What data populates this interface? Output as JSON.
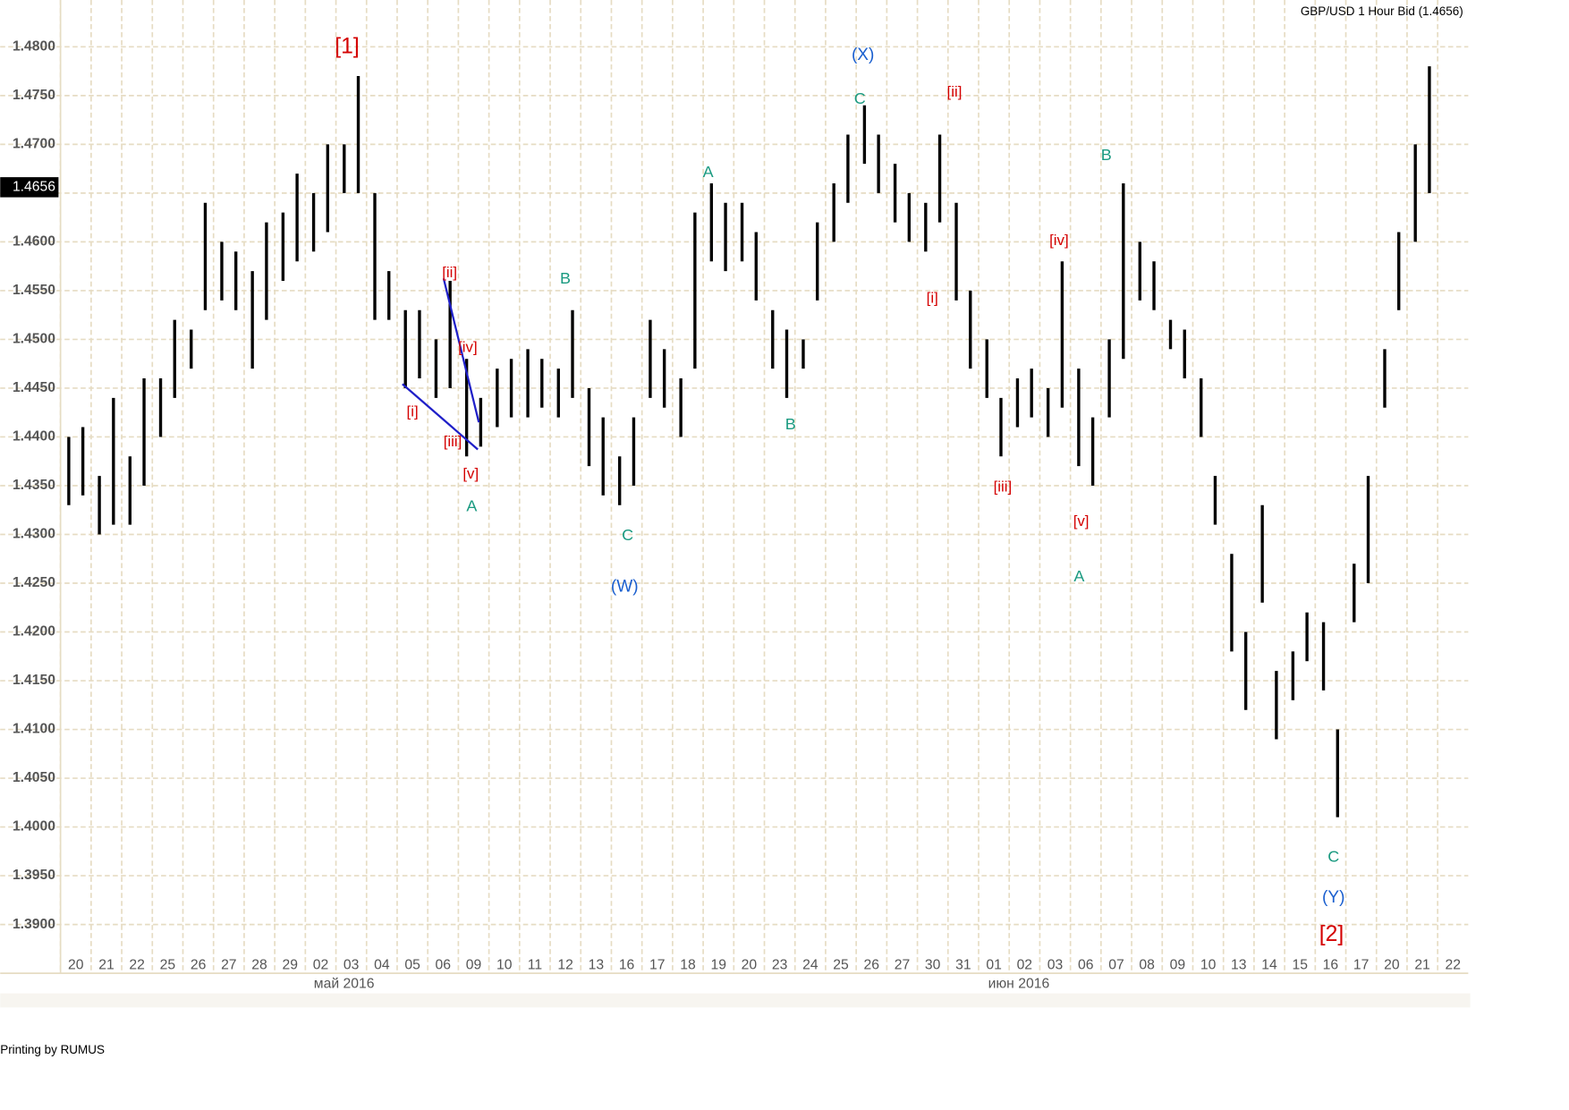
{
  "chart_data": {
    "type": "range-bar",
    "title": "GBP/USD 1 Hour Bid (1.4656)",
    "color": "#000000",
    "grid": true,
    "categories": [
      "20",
      "21",
      "22",
      "25",
      "26",
      "27",
      "28",
      "29",
      "02",
      "03",
      "04",
      "05",
      "06",
      "09",
      "10",
      "11",
      "12",
      "13",
      "16",
      "17",
      "18",
      "19",
      "20",
      "23",
      "24",
      "25",
      "26",
      "27",
      "30",
      "31",
      "01",
      "02",
      "03",
      "06",
      "07",
      "08",
      "09",
      "10",
      "13",
      "14",
      "15",
      "16",
      "17",
      "20",
      "21",
      "22"
    ],
    "month_labels": [
      "май 2016",
      "июн 2016"
    ],
    "lows": [
      1.433,
      1.434,
      1.43,
      1.431,
      1.431,
      1.435,
      1.44,
      1.444,
      1.447,
      1.453,
      1.454,
      1.453,
      1.447,
      1.452,
      1.456,
      1.458,
      1.459,
      1.461,
      1.465,
      1.465,
      1.452,
      1.452,
      1.445,
      1.446,
      1.444,
      1.445,
      1.438,
      1.439,
      1.441,
      1.442,
      1.442,
      1.443,
      1.442,
      1.444,
      1.437,
      1.434,
      1.433,
      1.435,
      1.444,
      1.443,
      1.44,
      1.447,
      1.458,
      1.457,
      1.458,
      1.454,
      1.447,
      1.444,
      1.447,
      1.454,
      1.46,
      1.464,
      1.468,
      1.465,
      1.462,
      1.46,
      1.459,
      1.462,
      1.454,
      1.447,
      1.444,
      1.438,
      1.441,
      1.442,
      1.44,
      1.443,
      1.437,
      1.435,
      1.442,
      1.448,
      1.454,
      1.453,
      1.449,
      1.446,
      1.44,
      1.431,
      1.418,
      1.412,
      1.423,
      1.409,
      1.413,
      1.417,
      1.414,
      1.401,
      1.421,
      1.425,
      1.443,
      1.453,
      1.46,
      1.465,
      null,
      null
    ],
    "highs": [
      1.44,
      1.441,
      1.436,
      1.444,
      1.438,
      1.446,
      1.446,
      1.452,
      1.451,
      1.464,
      1.46,
      1.459,
      1.457,
      1.462,
      1.463,
      1.467,
      1.465,
      1.47,
      1.47,
      1.477,
      1.465,
      1.457,
      1.453,
      1.453,
      1.45,
      1.456,
      1.448,
      1.444,
      1.447,
      1.448,
      1.449,
      1.448,
      1.447,
      1.453,
      1.445,
      1.442,
      1.438,
      1.442,
      1.452,
      1.449,
      1.446,
      1.463,
      1.466,
      1.464,
      1.464,
      1.461,
      1.453,
      1.451,
      1.45,
      1.462,
      1.466,
      1.471,
      1.474,
      1.471,
      1.468,
      1.465,
      1.464,
      1.471,
      1.464,
      1.455,
      1.45,
      1.444,
      1.446,
      1.447,
      1.445,
      1.458,
      1.447,
      1.442,
      1.45,
      1.466,
      1.46,
      1.458,
      1.452,
      1.451,
      1.446,
      1.436,
      1.428,
      1.42,
      1.433,
      1.416,
      1.418,
      1.422,
      1.421,
      1.41,
      1.427,
      1.436,
      1.449,
      1.461,
      1.47,
      1.478,
      null,
      null
    ],
    "ylim": [
      1.385,
      1.4848
    ],
    "yticks": [
      {
        "value": 1.39,
        "label": "1.3900"
      },
      {
        "value": 1.395,
        "label": "1.3950"
      },
      {
        "value": 1.4,
        "label": "1.4000"
      },
      {
        "value": 1.405,
        "label": "1.4050"
      },
      {
        "value": 1.41,
        "label": "1.4100"
      },
      {
        "value": 1.415,
        "label": "1.4150"
      },
      {
        "value": 1.42,
        "label": "1.4200"
      },
      {
        "value": 1.425,
        "label": "1.4250"
      },
      {
        "value": 1.43,
        "label": "1.4300"
      },
      {
        "value": 1.435,
        "label": "1.4350"
      },
      {
        "value": 1.44,
        "label": "1.4400"
      },
      {
        "value": 1.445,
        "label": "1.4450"
      },
      {
        "value": 1.45,
        "label": "1.4500"
      },
      {
        "value": 1.455,
        "label": "1.4550"
      },
      {
        "value": 1.46,
        "label": "1.4600"
      },
      {
        "value": 1.465,
        "label": "1.4650"
      },
      {
        "value": 1.47,
        "label": "1.4700"
      },
      {
        "value": 1.475,
        "label": "1.4750"
      },
      {
        "value": 1.48,
        "label": "1.4800"
      }
    ],
    "current_price": {
      "value": 1.4656,
      "label": "1.4656"
    },
    "annotations": [
      {
        "text": "[1]",
        "color": "#d40000"
      },
      {
        "text": "(X)",
        "color": "#1a5fcf"
      },
      {
        "text": "C",
        "color": "#1a9a80"
      },
      {
        "text": "[ii]",
        "color": "#d40000"
      },
      {
        "text": "A",
        "color": "#1a9a80"
      },
      {
        "text": "B",
        "color": "#1a9a80"
      },
      {
        "text": "[iv]",
        "color": "#d40000"
      },
      {
        "text": "[ii]",
        "color": "#d40000"
      },
      {
        "text": "B",
        "color": "#1a9a80"
      },
      {
        "text": "[i]",
        "color": "#d40000"
      },
      {
        "text": "[iv]",
        "color": "#d40000"
      },
      {
        "text": "[i]",
        "color": "#d40000"
      },
      {
        "text": "B",
        "color": "#1a9a80"
      },
      {
        "text": "[iii]",
        "color": "#d40000"
      },
      {
        "text": "[v]",
        "color": "#d40000"
      },
      {
        "text": "A",
        "color": "#1a9a80"
      },
      {
        "text": "[iii]",
        "color": "#d40000"
      },
      {
        "text": "[v]",
        "color": "#d40000"
      },
      {
        "text": "C",
        "color": "#1a9a80"
      },
      {
        "text": "(W)",
        "color": "#1a5fcf"
      },
      {
        "text": "A",
        "color": "#1a9a80"
      },
      {
        "text": "C",
        "color": "#1a9a80"
      },
      {
        "text": "(Y)",
        "color": "#1a5fcf"
      },
      {
        "text": "[2]",
        "color": "#d40000"
      }
    ]
  },
  "footer": "Printing by  RUMUS"
}
